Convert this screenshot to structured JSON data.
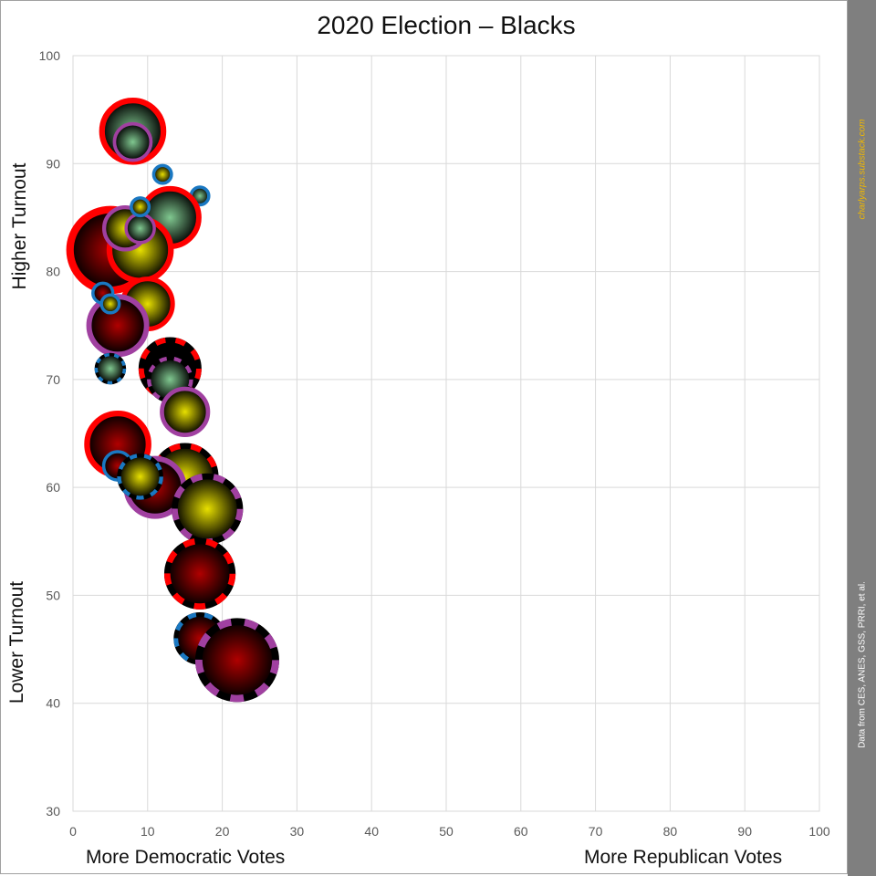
{
  "chart_data": {
    "type": "scatter",
    "subtype": "bubble",
    "title": "2020 Election – Blacks",
    "xlim": [
      0,
      100
    ],
    "ylim": [
      30,
      100
    ],
    "xticks": [
      0,
      10,
      20,
      30,
      40,
      50,
      60,
      70,
      80,
      90,
      100
    ],
    "yticks": [
      30,
      40,
      50,
      60,
      70,
      80,
      90,
      100
    ],
    "grid": true,
    "x_annotations": {
      "left": "More Democratic Votes",
      "right": "More Republican Votes"
    },
    "y_annotations": {
      "top": "Higher Turnout",
      "bottom": "Lower Turnout"
    },
    "fill_colors": {
      "red": "#b00000",
      "yellow": "#e8e000",
      "green": "#80c890",
      "dark": "#000000"
    },
    "ring_colors": {
      "red": "#ff0000",
      "purple": "#a040a0",
      "blue": "#1a78c2",
      "black": "#000000"
    },
    "points": [
      {
        "x": 5,
        "y": 82,
        "size": 4.2,
        "fill": "red",
        "ring": "red",
        "dashed": false
      },
      {
        "x": 8,
        "y": 93,
        "size": 3.2,
        "fill": "green",
        "ring": "red",
        "dashed": false
      },
      {
        "x": 8,
        "y": 92,
        "size": 1.9,
        "fill": "green",
        "ring": "purple",
        "dashed": false
      },
      {
        "x": 12,
        "y": 89,
        "size": 1.0,
        "fill": "yellow",
        "ring": "blue",
        "dashed": false
      },
      {
        "x": 17,
        "y": 87,
        "size": 1.0,
        "fill": "green",
        "ring": "blue",
        "dashed": false
      },
      {
        "x": 13,
        "y": 85,
        "size": 3.0,
        "fill": "green",
        "ring": "red",
        "dashed": false
      },
      {
        "x": 9,
        "y": 82,
        "size": 3.2,
        "fill": "yellow",
        "ring": "red",
        "dashed": false
      },
      {
        "x": 7,
        "y": 84,
        "size": 2.2,
        "fill": "yellow",
        "ring": "purple",
        "dashed": false
      },
      {
        "x": 9,
        "y": 84,
        "size": 1.5,
        "fill": "green",
        "ring": "purple",
        "dashed": false
      },
      {
        "x": 9,
        "y": 86,
        "size": 1.0,
        "fill": "yellow",
        "ring": "blue",
        "dashed": false
      },
      {
        "x": 10,
        "y": 77,
        "size": 2.6,
        "fill": "yellow",
        "ring": "red",
        "dashed": false
      },
      {
        "x": 6,
        "y": 75,
        "size": 3.0,
        "fill": "red",
        "ring": "purple",
        "dashed": false
      },
      {
        "x": 4,
        "y": 78,
        "size": 1.1,
        "fill": "red",
        "ring": "blue",
        "dashed": false
      },
      {
        "x": 5,
        "y": 77,
        "size": 1.0,
        "fill": "yellow",
        "ring": "blue",
        "dashed": false
      },
      {
        "x": 13,
        "y": 71,
        "size": 3.0,
        "fill": "dark",
        "ring": "red",
        "dashed": true
      },
      {
        "x": 13,
        "y": 70,
        "size": 2.2,
        "fill": "green",
        "ring": "purple",
        "dashed": true
      },
      {
        "x": 5,
        "y": 71,
        "size": 1.5,
        "fill": "green",
        "ring": "blue",
        "dashed": true
      },
      {
        "x": 15,
        "y": 67,
        "size": 2.4,
        "fill": "yellow",
        "ring": "purple",
        "dashed": false
      },
      {
        "x": 6,
        "y": 64,
        "size": 3.2,
        "fill": "red",
        "ring": "red",
        "dashed": false
      },
      {
        "x": 6,
        "y": 62,
        "size": 1.5,
        "fill": "red",
        "ring": "blue",
        "dashed": false
      },
      {
        "x": 15,
        "y": 61,
        "size": 3.2,
        "fill": "yellow",
        "ring": "red",
        "dashed": true
      },
      {
        "x": 11,
        "y": 60,
        "size": 3.0,
        "fill": "red",
        "ring": "purple",
        "dashed": false
      },
      {
        "x": 9,
        "y": 61,
        "size": 2.2,
        "fill": "yellow",
        "ring": "blue",
        "dashed": true
      },
      {
        "x": 18,
        "y": 58,
        "size": 3.4,
        "fill": "yellow",
        "ring": "purple",
        "dashed": true
      },
      {
        "x": 17,
        "y": 52,
        "size": 3.4,
        "fill": "red",
        "ring": "red",
        "dashed": true
      },
      {
        "x": 17,
        "y": 46,
        "size": 2.5,
        "fill": "red",
        "ring": "blue",
        "dashed": true
      },
      {
        "x": 22,
        "y": 44,
        "size": 4.0,
        "fill": "red",
        "ring": "purple",
        "dashed": true
      }
    ]
  },
  "labels": {
    "higher_turnout": "Higher Turnout",
    "lower_turnout": "Lower Turnout",
    "more_dem": "More Democratic Votes",
    "more_rep": "More Republican Votes",
    "credit_url": "charlyarps.substack.com",
    "credit_data": "Data from CES, ANES, GSS, PRRI, et al."
  }
}
